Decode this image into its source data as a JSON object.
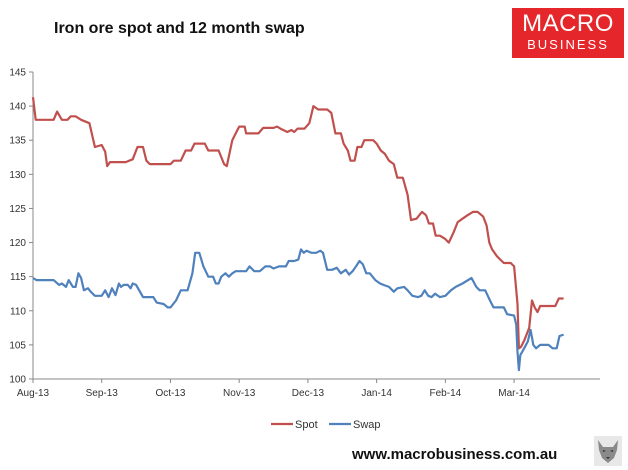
{
  "title": "Iron ore spot and 12 month swap",
  "logo": {
    "line1": "MACRO",
    "line2": "BUSINESS",
    "color": "#e5262a"
  },
  "footer": "www.macrobusiness.com.au",
  "chart_data": {
    "type": "line",
    "title": "Iron ore spot and 12 month swap",
    "xlabel": "",
    "ylabel": "",
    "ylim": [
      100,
      145
    ],
    "yticks": [
      100,
      105,
      110,
      115,
      120,
      125,
      130,
      135,
      140,
      145
    ],
    "xlim": [
      0,
      8.25
    ],
    "xticks": [
      {
        "x": 0,
        "label": "Aug-13"
      },
      {
        "x": 1,
        "label": "Sep-13"
      },
      {
        "x": 2,
        "label": "Oct-13"
      },
      {
        "x": 3,
        "label": "Nov-13"
      },
      {
        "x": 4,
        "label": "Dec-13"
      },
      {
        "x": 5,
        "label": "Jan-14"
      },
      {
        "x": 6,
        "label": "Feb-14"
      },
      {
        "x": 7,
        "label": "Mar-14"
      }
    ],
    "grid": false,
    "legend": "bottom",
    "series": [
      {
        "name": "Spot",
        "color": "#c0504d",
        "points": [
          [
            0,
            141.3
          ],
          [
            0.04,
            138
          ],
          [
            0.15,
            138
          ],
          [
            0.3,
            138
          ],
          [
            0.35,
            139.2
          ],
          [
            0.42,
            138
          ],
          [
            0.5,
            138
          ],
          [
            0.55,
            138.5
          ],
          [
            0.62,
            138.5
          ],
          [
            0.7,
            138
          ],
          [
            0.82,
            137.5
          ],
          [
            0.9,
            134
          ],
          [
            1,
            134.3
          ],
          [
            1.05,
            133.3
          ],
          [
            1.08,
            131.2
          ],
          [
            1.12,
            131.8
          ],
          [
            1.35,
            131.8
          ],
          [
            1.45,
            132.2
          ],
          [
            1.52,
            134
          ],
          [
            1.6,
            134
          ],
          [
            1.65,
            132
          ],
          [
            1.7,
            131.5
          ],
          [
            1.8,
            131.5
          ],
          [
            2,
            131.5
          ],
          [
            2.05,
            132
          ],
          [
            2.15,
            132
          ],
          [
            2.22,
            133.5
          ],
          [
            2.3,
            133.5
          ],
          [
            2.35,
            134.5
          ],
          [
            2.5,
            134.5
          ],
          [
            2.55,
            133.5
          ],
          [
            2.7,
            133.5
          ],
          [
            2.78,
            131.5
          ],
          [
            2.82,
            131.2
          ],
          [
            2.9,
            135
          ],
          [
            2.95,
            136
          ],
          [
            3,
            137
          ],
          [
            3.08,
            137
          ],
          [
            3.1,
            136
          ],
          [
            3.28,
            136
          ],
          [
            3.35,
            136.8
          ],
          [
            3.5,
            136.8
          ],
          [
            3.55,
            137
          ],
          [
            3.6,
            136.7
          ],
          [
            3.7,
            136.2
          ],
          [
            3.76,
            136.5
          ],
          [
            3.8,
            136.2
          ],
          [
            3.85,
            136.7
          ],
          [
            3.95,
            136.7
          ],
          [
            4.02,
            137.5
          ],
          [
            4.08,
            140
          ],
          [
            4.15,
            139.5
          ],
          [
            4.22,
            139.5
          ],
          [
            4.28,
            139.5
          ],
          [
            4.34,
            139
          ],
          [
            4.4,
            136
          ],
          [
            4.48,
            136
          ],
          [
            4.52,
            134.5
          ],
          [
            4.58,
            133.5
          ],
          [
            4.62,
            132
          ],
          [
            4.68,
            132
          ],
          [
            4.72,
            134
          ],
          [
            4.78,
            134
          ],
          [
            4.82,
            135
          ],
          [
            4.95,
            135
          ],
          [
            5,
            134.5
          ],
          [
            5.06,
            133.5
          ],
          [
            5.12,
            133
          ],
          [
            5.18,
            132
          ],
          [
            5.25,
            131.5
          ],
          [
            5.3,
            129.5
          ],
          [
            5.38,
            129.5
          ],
          [
            5.45,
            127
          ],
          [
            5.5,
            123.3
          ],
          [
            5.58,
            123.5
          ],
          [
            5.62,
            124
          ],
          [
            5.66,
            124.5
          ],
          [
            5.72,
            124
          ],
          [
            5.76,
            122.8
          ],
          [
            5.82,
            122.8
          ],
          [
            5.86,
            121
          ],
          [
            5.92,
            121
          ],
          [
            6,
            120.5
          ],
          [
            6.05,
            120
          ],
          [
            6.12,
            121.5
          ],
          [
            6.18,
            123
          ],
          [
            6.25,
            123.5
          ],
          [
            6.32,
            124
          ],
          [
            6.4,
            124.5
          ],
          [
            6.47,
            124.5
          ],
          [
            6.55,
            123.8
          ],
          [
            6.6,
            122.5
          ],
          [
            6.64,
            120
          ],
          [
            6.68,
            119
          ],
          [
            6.75,
            118
          ],
          [
            6.8,
            117.5
          ],
          [
            6.85,
            117
          ],
          [
            6.95,
            117
          ],
          [
            7,
            116.5
          ],
          [
            7.05,
            111
          ],
          [
            7.07,
            104.5
          ],
          [
            7.1,
            104.7
          ],
          [
            7.15,
            105.7
          ],
          [
            7.22,
            107.5
          ],
          [
            7.26,
            111.5
          ],
          [
            7.3,
            110.5
          ],
          [
            7.34,
            109.8
          ],
          [
            7.38,
            110.7
          ],
          [
            7.45,
            110.7
          ],
          [
            7.5,
            110.7
          ],
          [
            7.6,
            110.7
          ],
          [
            7.65,
            111.8
          ],
          [
            7.72,
            111.8
          ]
        ]
      },
      {
        "name": "Swap",
        "color": "#4f81bd",
        "points": [
          [
            0,
            114.8
          ],
          [
            0.05,
            114.5
          ],
          [
            0.3,
            114.5
          ],
          [
            0.38,
            113.8
          ],
          [
            0.42,
            114
          ],
          [
            0.48,
            113.5
          ],
          [
            0.52,
            114.5
          ],
          [
            0.58,
            113.5
          ],
          [
            0.62,
            113.5
          ],
          [
            0.66,
            115.5
          ],
          [
            0.7,
            114.8
          ],
          [
            0.74,
            113
          ],
          [
            0.8,
            113.3
          ],
          [
            0.84,
            112.8
          ],
          [
            0.9,
            112.2
          ],
          [
            1,
            112.2
          ],
          [
            1.05,
            113
          ],
          [
            1.1,
            112
          ],
          [
            1.15,
            113.3
          ],
          [
            1.2,
            112.3
          ],
          [
            1.25,
            114
          ],
          [
            1.28,
            113.5
          ],
          [
            1.32,
            113.8
          ],
          [
            1.38,
            113.8
          ],
          [
            1.42,
            113.3
          ],
          [
            1.45,
            114
          ],
          [
            1.5,
            113.8
          ],
          [
            1.6,
            112
          ],
          [
            1.75,
            112
          ],
          [
            1.8,
            111.2
          ],
          [
            1.9,
            111
          ],
          [
            1.96,
            110.5
          ],
          [
            2,
            110.5
          ],
          [
            2.08,
            111.5
          ],
          [
            2.15,
            113
          ],
          [
            2.25,
            113
          ],
          [
            2.32,
            115.5
          ],
          [
            2.36,
            118.5
          ],
          [
            2.42,
            118.5
          ],
          [
            2.48,
            116.5
          ],
          [
            2.55,
            115
          ],
          [
            2.62,
            115
          ],
          [
            2.66,
            114
          ],
          [
            2.7,
            114
          ],
          [
            2.74,
            115
          ],
          [
            2.8,
            115.5
          ],
          [
            2.85,
            115
          ],
          [
            2.9,
            115.5
          ],
          [
            2.95,
            115.8
          ],
          [
            3.1,
            115.8
          ],
          [
            3.15,
            116.5
          ],
          [
            3.22,
            115.8
          ],
          [
            3.3,
            115.8
          ],
          [
            3.38,
            116.5
          ],
          [
            3.45,
            116.5
          ],
          [
            3.5,
            116.2
          ],
          [
            3.58,
            116.5
          ],
          [
            3.68,
            116.5
          ],
          [
            3.72,
            117.3
          ],
          [
            3.8,
            117.3
          ],
          [
            3.86,
            117.5
          ],
          [
            3.9,
            119
          ],
          [
            3.94,
            118.5
          ],
          [
            3.98,
            118.8
          ],
          [
            4.05,
            118.5
          ],
          [
            4.12,
            118.5
          ],
          [
            4.18,
            118.8
          ],
          [
            4.22,
            118.5
          ],
          [
            4.28,
            116
          ],
          [
            4.35,
            116
          ],
          [
            4.42,
            116.3
          ],
          [
            4.48,
            115.5
          ],
          [
            4.55,
            116
          ],
          [
            4.6,
            115.3
          ],
          [
            4.65,
            115.8
          ],
          [
            4.7,
            116.5
          ],
          [
            4.75,
            117.3
          ],
          [
            4.8,
            116.8
          ],
          [
            4.85,
            115.5
          ],
          [
            4.9,
            115.5
          ],
          [
            4.98,
            114.5
          ],
          [
            5.05,
            114
          ],
          [
            5.1,
            113.8
          ],
          [
            5.18,
            113.5
          ],
          [
            5.25,
            112.8
          ],
          [
            5.3,
            113.3
          ],
          [
            5.4,
            113.5
          ],
          [
            5.45,
            113
          ],
          [
            5.52,
            112.2
          ],
          [
            5.6,
            112
          ],
          [
            5.65,
            112.2
          ],
          [
            5.7,
            113
          ],
          [
            5.75,
            112.2
          ],
          [
            5.8,
            112
          ],
          [
            5.85,
            112.5
          ],
          [
            5.92,
            112
          ],
          [
            6,
            112.2
          ],
          [
            6.08,
            113
          ],
          [
            6.15,
            113.5
          ],
          [
            6.25,
            114
          ],
          [
            6.38,
            114.8
          ],
          [
            6.45,
            113.5
          ],
          [
            6.5,
            113
          ],
          [
            6.58,
            113
          ],
          [
            6.65,
            111.5
          ],
          [
            6.7,
            110.5
          ],
          [
            6.78,
            110.5
          ],
          [
            6.85,
            110.5
          ],
          [
            6.9,
            109.5
          ],
          [
            7,
            109.3
          ],
          [
            7.03,
            108
          ],
          [
            7.05,
            104
          ],
          [
            7.07,
            101.3
          ],
          [
            7.09,
            103.5
          ],
          [
            7.12,
            104
          ],
          [
            7.2,
            105.5
          ],
          [
            7.24,
            107.2
          ],
          [
            7.28,
            105
          ],
          [
            7.32,
            104.5
          ],
          [
            7.38,
            105
          ],
          [
            7.5,
            105
          ],
          [
            7.56,
            104.5
          ],
          [
            7.62,
            104.5
          ],
          [
            7.66,
            106.3
          ],
          [
            7.72,
            106.5
          ]
        ]
      }
    ]
  }
}
